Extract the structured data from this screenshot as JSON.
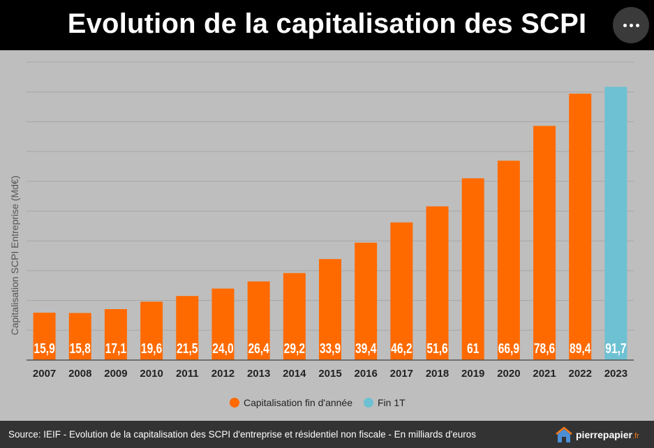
{
  "header": {
    "title": "Evolution de la capitalisation des SCPI"
  },
  "colors": {
    "orange": "#ff6a00",
    "cyan": "#6dc1d2",
    "header_bg": "#000000",
    "footer_bg": "#333333"
  },
  "chart_data": {
    "type": "bar",
    "title": "Evolution de la capitalisation des SCPI",
    "ylabel": "Capitalisation SCPI Entreprise (Md€)",
    "xlabel": "",
    "ylim": [
      0,
      100
    ],
    "grid": true,
    "legend_position": "bottom",
    "categories": [
      "2007",
      "2008",
      "2009",
      "2010",
      "2011",
      "2012",
      "2013",
      "2014",
      "2015",
      "2016",
      "2017",
      "2018",
      "2019",
      "2020",
      "2021",
      "2022",
      "2023"
    ],
    "values": [
      15.9,
      15.8,
      17.1,
      19.6,
      21.5,
      24.0,
      26.4,
      29.2,
      33.9,
      39.4,
      46.2,
      51.6,
      61,
      66.9,
      78.6,
      89.4,
      91.7
    ],
    "data_labels": [
      "15,9",
      "15,8",
      "17,1",
      "19,6",
      "21,5",
      "24,0",
      "26,4",
      "29,2",
      "33,9",
      "39,4",
      "46,2",
      "51,6",
      "61",
      "66,9",
      "78,6",
      "89,4",
      "91,7"
    ],
    "series": [
      {
        "name": "Capitalisation fin d'année",
        "color": "#ff6a00",
        "categories": [
          "2007",
          "2008",
          "2009",
          "2010",
          "2011",
          "2012",
          "2013",
          "2014",
          "2015",
          "2016",
          "2017",
          "2018",
          "2019",
          "2020",
          "2021",
          "2022"
        ]
      },
      {
        "name": "Fin 1T",
        "color": "#6dc1d2",
        "categories": [
          "2023"
        ]
      }
    ]
  },
  "footer": {
    "source": "Source:  IEIF -  Evolution de la capitalisation des SCPI d'entreprise et résidentiel non fiscale - En milliards d'euros",
    "logo_name": "pierrepapier",
    "logo_suffix": ".fr"
  }
}
